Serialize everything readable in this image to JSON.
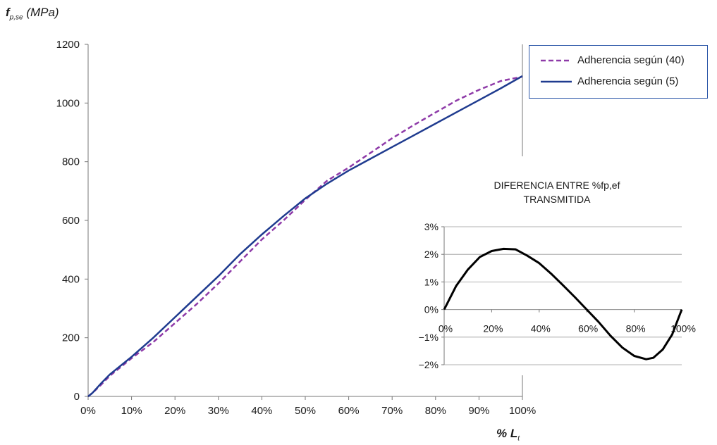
{
  "chart_data": [
    {
      "type": "line",
      "title": "",
      "ylabel_main": "f",
      "ylabel_sub": "p,se",
      "ylabel_unit": "(MPa)",
      "xlabel_main": "% L",
      "xlabel_sub": "t",
      "x_ticks": [
        "0%",
        "10%",
        "20%",
        "30%",
        "40%",
        "50%",
        "60%",
        "70%",
        "80%",
        "90%",
        "100%"
      ],
      "y_ticks": [
        "0",
        "200",
        "400",
        "600",
        "800",
        "1000",
        "1200"
      ],
      "xlim": [
        0,
        100
      ],
      "ylim": [
        0,
        1200
      ],
      "grid": false,
      "legend_position": "top-right",
      "x": [
        0,
        1,
        3,
        5,
        10,
        15,
        20,
        25,
        30,
        35,
        40,
        45,
        50,
        55,
        60,
        65,
        70,
        75,
        80,
        85,
        90,
        95,
        100
      ],
      "series": [
        {
          "name": "Adherencia según (40)",
          "style": "dashed",
          "color": "#8e3aa8",
          "values": [
            0,
            12,
            40,
            70,
            130,
            185,
            250,
            315,
            385,
            460,
            535,
            600,
            670,
            735,
            780,
            830,
            880,
            925,
            968,
            1010,
            1045,
            1075,
            1090
          ]
        },
        {
          "name": "Adherencia según (5)",
          "style": "solid",
          "color": "#1f3b8f",
          "values": [
            0,
            12,
            45,
            75,
            135,
            200,
            270,
            340,
            410,
            485,
            552,
            615,
            675,
            725,
            770,
            810,
            850,
            890,
            930,
            970,
            1010,
            1050,
            1092
          ]
        }
      ]
    },
    {
      "type": "line",
      "title_line1": "DIFERENCIA ENTRE %fp,ef",
      "title_line2": "TRANSMITIDA",
      "x_ticks": [
        "0%",
        "20%",
        "40%",
        "60%",
        "80%",
        "100%"
      ],
      "y_ticks": [
        "−2%",
        "−1%",
        "0%",
        "1%",
        "2%",
        "3%"
      ],
      "xlim": [
        0,
        100
      ],
      "ylim": [
        -2,
        3
      ],
      "grid": false,
      "x": [
        0,
        5,
        10,
        15,
        20,
        25,
        30,
        35,
        40,
        45,
        50,
        55,
        60,
        65,
        70,
        75,
        80,
        85,
        88,
        92,
        96,
        100
      ],
      "series": [
        {
          "color": "#000000",
          "values": [
            0,
            0.85,
            1.45,
            1.9,
            2.12,
            2.2,
            2.18,
            1.95,
            1.68,
            1.3,
            0.88,
            0.45,
            0.0,
            -0.45,
            -0.95,
            -1.38,
            -1.68,
            -1.8,
            -1.75,
            -1.45,
            -0.9,
            0
          ]
        }
      ]
    }
  ]
}
